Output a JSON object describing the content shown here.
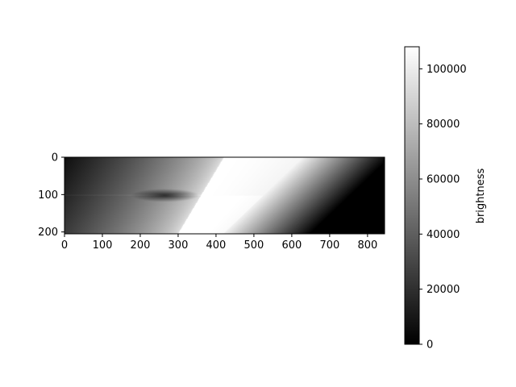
{
  "chart_data": {
    "type": "heatmap",
    "title": "",
    "xlabel": "",
    "ylabel": "",
    "xlim": [
      0,
      845
    ],
    "ylim": [
      205,
      0
    ],
    "x_ticks": [
      0,
      100,
      200,
      300,
      400,
      500,
      600,
      700,
      800
    ],
    "y_ticks": [
      0,
      100,
      200
    ],
    "colormap": "gray",
    "colorbar": {
      "label": "brightness",
      "range": [
        0,
        108000
      ],
      "ticks": [
        0,
        20000,
        40000,
        60000,
        80000,
        100000
      ]
    },
    "features": {
      "bright_band_left_edge": [
        [
          420,
          0
        ],
        [
          300,
          205
        ]
      ],
      "bright_band_right_edge": [
        [
          630,
          0
        ],
        [
          420,
          205
        ]
      ],
      "dark_crossing_point": [
        265,
        102
      ],
      "horizontal_seam_y": 102
    }
  }
}
